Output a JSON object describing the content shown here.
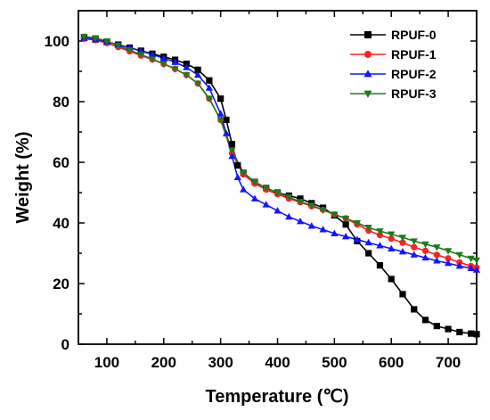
{
  "chart_data": {
    "type": "line",
    "xlabel": "Temperature (℃)",
    "ylabel": "Weight (%)",
    "xlim": [
      50,
      750
    ],
    "ylim": [
      0,
      110
    ],
    "xticks": [
      100,
      200,
      300,
      400,
      500,
      600,
      700
    ],
    "yticks": [
      0,
      20,
      40,
      60,
      80,
      100
    ],
    "legend_position": "top-right",
    "series": [
      {
        "name": "RPUF-0",
        "color": "#000000",
        "marker": "square",
        "x": [
          60,
          80,
          100,
          120,
          140,
          160,
          180,
          200,
          220,
          240,
          260,
          280,
          300,
          310,
          320,
          330,
          340,
          360,
          380,
          400,
          420,
          440,
          460,
          480,
          500,
          520,
          540,
          560,
          580,
          600,
          620,
          640,
          660,
          680,
          700,
          720,
          740,
          750
        ],
        "y": [
          101,
          100.5,
          99.7,
          98.8,
          97.8,
          96.8,
          95.8,
          94.8,
          93.8,
          92.5,
          90.5,
          87,
          81,
          74,
          66,
          59,
          56.5,
          53.5,
          51.5,
          50,
          49,
          48,
          46.5,
          45,
          42.5,
          39.5,
          34,
          30,
          26,
          21.5,
          16.5,
          11.5,
          8,
          6,
          5,
          4,
          3.5,
          3.3
        ]
      },
      {
        "name": "RPUF-1",
        "color": "#ff2020",
        "marker": "circle",
        "x": [
          60,
          80,
          100,
          120,
          140,
          160,
          180,
          200,
          220,
          240,
          260,
          280,
          300,
          320,
          340,
          360,
          380,
          400,
          420,
          440,
          460,
          480,
          500,
          520,
          540,
          560,
          580,
          600,
          620,
          640,
          660,
          680,
          700,
          720,
          740,
          750
        ],
        "y": [
          100.8,
          100.3,
          99.3,
          98,
          96.6,
          95.2,
          93.9,
          92.4,
          90.8,
          88.8,
          86,
          81,
          74,
          63,
          56,
          53,
          51,
          49.5,
          48,
          46.8,
          45.5,
          44.3,
          42.8,
          41.5,
          39.5,
          37.5,
          36,
          34.8,
          33.5,
          32,
          30.8,
          29.5,
          28.3,
          27,
          25.8,
          25.3
        ]
      },
      {
        "name": "RPUF-2",
        "color": "#1515ff",
        "marker": "triangle-up",
        "x": [
          60,
          80,
          100,
          120,
          140,
          160,
          180,
          200,
          220,
          240,
          260,
          280,
          300,
          310,
          320,
          330,
          340,
          360,
          380,
          400,
          420,
          440,
          460,
          480,
          500,
          520,
          540,
          560,
          580,
          600,
          620,
          640,
          660,
          680,
          700,
          720,
          740,
          750
        ],
        "y": [
          101,
          100.5,
          99.7,
          98.8,
          97.8,
          96.7,
          95.6,
          94.3,
          93,
          91.3,
          88.8,
          84.5,
          76,
          69.5,
          62,
          55,
          51,
          48,
          46,
          44,
          42,
          40.5,
          39,
          37.8,
          36.5,
          35.5,
          34.5,
          33.5,
          32.5,
          31.5,
          30.5,
          29.5,
          28.5,
          27.5,
          26.7,
          25.8,
          25,
          24.5
        ]
      },
      {
        "name": "RPUF-3",
        "color": "#1e7a1e",
        "marker": "triangle-down",
        "x": [
          60,
          80,
          100,
          120,
          140,
          160,
          180,
          200,
          220,
          240,
          260,
          280,
          300,
          320,
          340,
          360,
          380,
          400,
          420,
          440,
          460,
          480,
          500,
          520,
          540,
          560,
          580,
          600,
          620,
          640,
          660,
          680,
          700,
          720,
          740,
          750
        ],
        "y": [
          101.5,
          101,
          100,
          98.5,
          97,
          95.5,
          94,
          92.5,
          90.8,
          88.8,
          86,
          81,
          74,
          64,
          56.5,
          53.5,
          51.5,
          50,
          48.5,
          47,
          45.8,
          44.3,
          42.8,
          41.5,
          40,
          38.5,
          37.3,
          36.3,
          35.2,
          34,
          33,
          32,
          30.8,
          29.5,
          28.3,
          27.7
        ]
      }
    ]
  }
}
